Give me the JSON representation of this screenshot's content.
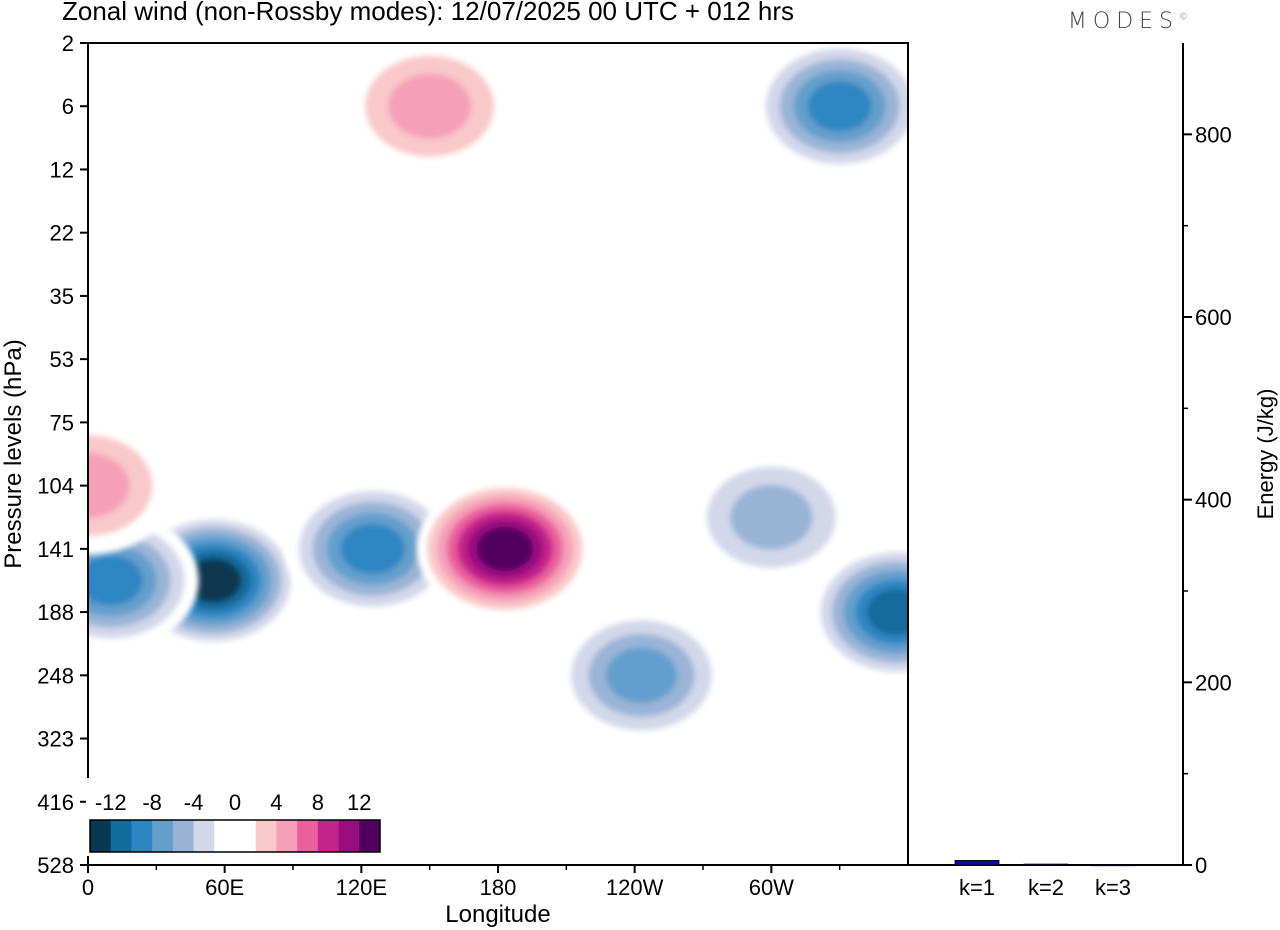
{
  "title": "Zonal wind (non-Rossby modes):  12/07/2025  00 UTC  + 012 hrs",
  "logo": "MODES",
  "logo_mark": "©",
  "chart_data": [
    {
      "type": "heatmap",
      "xlabel": "Longitude",
      "ylabel": "Pressure levels (hPa)",
      "x_ticks": [
        "0",
        "60E",
        "120E",
        "180",
        "120W",
        "60W"
      ],
      "y_ticks": [
        "2",
        "6",
        "12",
        "22",
        "35",
        "53",
        "75",
        "104",
        "141",
        "188",
        "248",
        "323",
        "416",
        "528"
      ],
      "colorbar": {
        "labels": [
          "-12",
          "-8",
          "-4",
          "0",
          "4",
          "8",
          "12"
        ],
        "colors": [
          "#08384f",
          "#126b9c",
          "#2d86c2",
          "#649fcc",
          "#9ab4d6",
          "#d3d7ea",
          "#ffffff",
          "#ffffff",
          "#f9c8c8",
          "#f59fb9",
          "#ea5f9c",
          "#c4238a",
          "#9a0d80",
          "#51005f"
        ]
      },
      "features": [
        {
          "lon": 55,
          "level": "141-188",
          "value": -14
        },
        {
          "lon": 10,
          "level": "141-188",
          "value": -9
        },
        {
          "lon": 125,
          "level": "141",
          "value": -9
        },
        {
          "lon": 183,
          "level": "141",
          "value": 14
        },
        {
          "lon": 243,
          "level": "248",
          "value": -8
        },
        {
          "lon": 355,
          "level": "188",
          "value": -11
        },
        {
          "lon": 330,
          "level": "6",
          "value": -9
        },
        {
          "lon": 150,
          "level": "6",
          "value": 6
        },
        {
          "lon": 300,
          "level": "104-141",
          "value": -6
        },
        {
          "lon": 0,
          "level": "104",
          "value": 6
        }
      ]
    },
    {
      "type": "bar",
      "ylabel": "Energy (J/kg)",
      "categories": [
        "k=1",
        "k=2",
        "k=3"
      ],
      "values": [
        5,
        1,
        0.3
      ],
      "ylim": [
        0,
        900
      ],
      "y_ticks": [
        0,
        200,
        400,
        600,
        800
      ],
      "bar_color": "#0b0bb3"
    }
  ]
}
